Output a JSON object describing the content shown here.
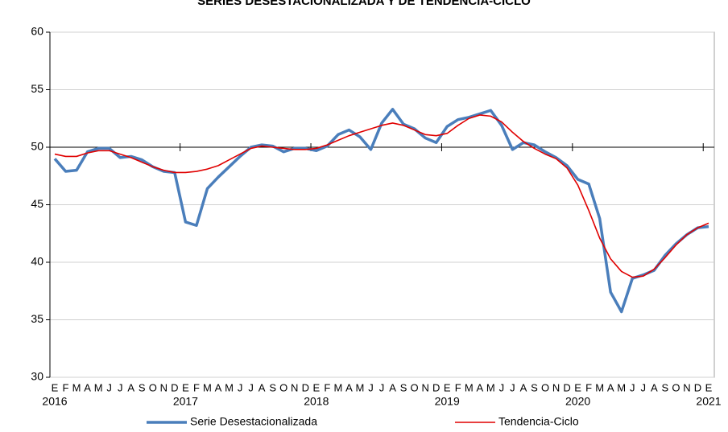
{
  "chart_data": {
    "type": "line",
    "title": "SERIES DESESTACIONALIZADA Y DE TENDENCIA-CICLO",
    "categories": [
      "E",
      "F",
      "M",
      "A",
      "M",
      "J",
      "J",
      "A",
      "S",
      "O",
      "N",
      "D",
      "E",
      "F",
      "M",
      "A",
      "M",
      "J",
      "J",
      "A",
      "S",
      "O",
      "N",
      "D",
      "E",
      "F",
      "M",
      "A",
      "M",
      "J",
      "J",
      "A",
      "S",
      "O",
      "N",
      "D",
      "E",
      "F",
      "M",
      "A",
      "M",
      "J",
      "J",
      "A",
      "S",
      "O",
      "N",
      "D",
      "E",
      "F",
      "M",
      "A",
      "M",
      "J",
      "J",
      "A",
      "S",
      "O",
      "N",
      "D",
      "E"
    ],
    "years": [
      "2016",
      null,
      null,
      null,
      null,
      null,
      null,
      null,
      null,
      null,
      null,
      null,
      "2017",
      null,
      null,
      null,
      null,
      null,
      null,
      null,
      null,
      null,
      null,
      null,
      "2018",
      null,
      null,
      null,
      null,
      null,
      null,
      null,
      null,
      null,
      null,
      null,
      "2019",
      null,
      null,
      null,
      null,
      null,
      null,
      null,
      null,
      null,
      null,
      null,
      "2020",
      null,
      null,
      null,
      null,
      null,
      null,
      null,
      null,
      null,
      null,
      null,
      "2021"
    ],
    "series": [
      {
        "name": "Serie Desestacionalizada",
        "color": "#4a7ebb",
        "values": [
          49.0,
          47.9,
          48.0,
          49.6,
          49.9,
          49.9,
          49.1,
          49.2,
          48.9,
          48.3,
          47.9,
          47.8,
          43.5,
          43.2,
          46.4,
          47.4,
          48.3,
          49.2,
          50.0,
          50.2,
          50.1,
          49.6,
          49.9,
          49.9,
          49.7,
          50.1,
          51.1,
          51.5,
          50.9,
          49.8,
          52.1,
          53.3,
          52.0,
          51.6,
          50.8,
          50.4,
          51.8,
          52.4,
          52.6,
          52.9,
          53.2,
          51.9,
          49.8,
          50.4,
          50.2,
          49.6,
          49.1,
          48.4,
          47.2,
          46.8,
          43.8,
          37.4,
          35.7,
          38.6,
          38.9,
          39.3,
          40.6,
          41.6,
          42.4,
          43.0,
          43.1
        ]
      },
      {
        "name": "Tendencia-Ciclo",
        "color": "#e00000",
        "values": [
          49.4,
          49.2,
          49.2,
          49.5,
          49.7,
          49.7,
          49.4,
          49.1,
          48.7,
          48.3,
          48.0,
          47.8,
          47.8,
          47.9,
          48.1,
          48.4,
          48.9,
          49.4,
          49.9,
          50.1,
          50.0,
          49.9,
          49.8,
          49.8,
          49.9,
          50.2,
          50.6,
          51.0,
          51.3,
          51.6,
          51.9,
          52.1,
          51.9,
          51.5,
          51.1,
          51.0,
          51.2,
          51.9,
          52.5,
          52.8,
          52.7,
          52.2,
          51.3,
          50.5,
          49.9,
          49.4,
          49.0,
          48.2,
          46.7,
          44.5,
          42.1,
          40.3,
          39.2,
          38.7,
          38.8,
          39.4,
          40.4,
          41.5,
          42.4,
          43.0,
          43.4
        ]
      }
    ],
    "ylim": [
      30,
      60
    ],
    "yticks": [
      30,
      35,
      40,
      45,
      50,
      55,
      60
    ],
    "x_axis_at": 50,
    "grid": true,
    "legend": "bottom"
  }
}
